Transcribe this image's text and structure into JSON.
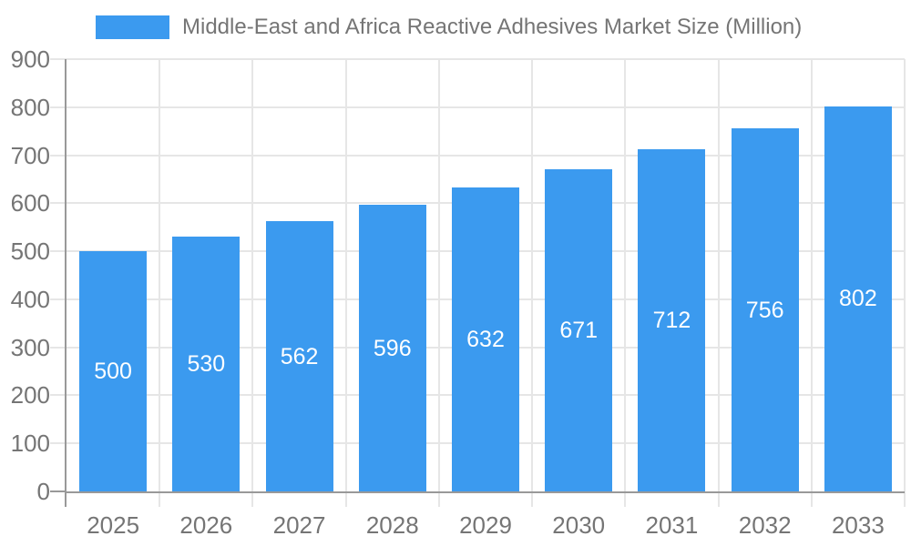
{
  "chart_data": {
    "type": "bar",
    "title": "Middle-East and Africa Reactive Adhesives Market Size (Million)",
    "categories": [
      "2025",
      "2026",
      "2027",
      "2028",
      "2029",
      "2030",
      "2031",
      "2032",
      "2033"
    ],
    "values": [
      500,
      530,
      562,
      596,
      632,
      671,
      712,
      756,
      802
    ],
    "xlabel": "",
    "ylabel": "",
    "ylim": [
      0,
      900
    ],
    "yticks": [
      0,
      100,
      200,
      300,
      400,
      500,
      600,
      700,
      800,
      900
    ],
    "grid": true,
    "legend_position": "top",
    "value_labels": "inside-center",
    "colors": {
      "bar": "#3b9aef",
      "axis_line": "#999999",
      "gridline": "#e6e6e6",
      "axis_text": "#757575",
      "title_text": "#757575",
      "value_label_text": "#ffffff"
    }
  }
}
